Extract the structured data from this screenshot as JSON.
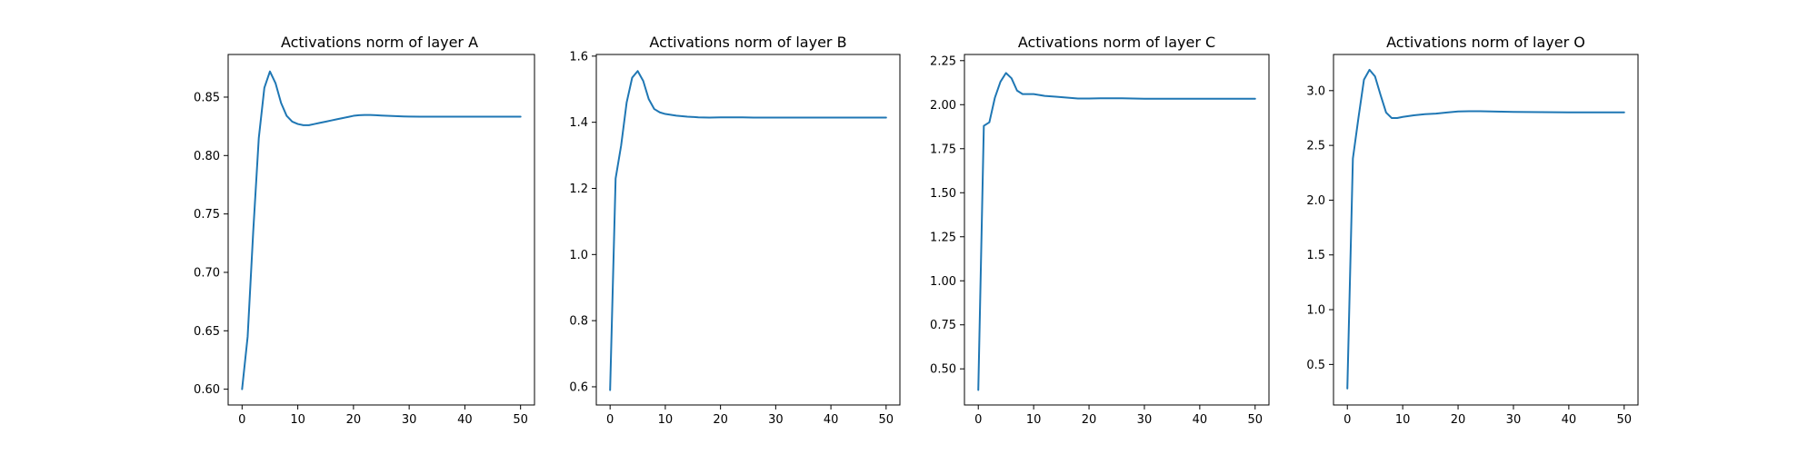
{
  "series_color": "#1f77b4",
  "chart_data": [
    {
      "type": "line",
      "title": "Activations norm of layer A",
      "xlabel": "",
      "ylabel": "",
      "xlim": [
        -2.5,
        52.5
      ],
      "ylim": [
        0.5865,
        0.8865
      ],
      "xticks": [
        0,
        10,
        20,
        30,
        40,
        50
      ],
      "yticks": [
        0.6,
        0.65,
        0.7,
        0.75,
        0.8,
        0.85
      ],
      "ytick_labels": [
        "0.60",
        "0.65",
        "0.70",
        "0.75",
        "0.80",
        "0.85"
      ],
      "grid": false,
      "series": [
        {
          "x": [
            0,
            1,
            2,
            3,
            4,
            5,
            6,
            7,
            8,
            9,
            10,
            11,
            12,
            13,
            14,
            15,
            16,
            17,
            18,
            19,
            20,
            21,
            22,
            23,
            24,
            25,
            26,
            27,
            28,
            29,
            30,
            32,
            34,
            36,
            38,
            40,
            42,
            44,
            46,
            48,
            50
          ],
          "y": [
            0.6,
            0.645,
            0.735,
            0.815,
            0.858,
            0.872,
            0.862,
            0.845,
            0.834,
            0.829,
            0.827,
            0.826,
            0.826,
            0.827,
            0.828,
            0.829,
            0.83,
            0.831,
            0.832,
            0.833,
            0.834,
            0.8345,
            0.8347,
            0.8347,
            0.8345,
            0.8342,
            0.834,
            0.8338,
            0.8336,
            0.8335,
            0.8334,
            0.8333,
            0.8333,
            0.8333,
            0.8333,
            0.8333,
            0.8333,
            0.8333,
            0.8333,
            0.8333,
            0.8333
          ]
        }
      ]
    },
    {
      "type": "line",
      "title": "Activations norm of layer B",
      "xlabel": "",
      "ylabel": "",
      "xlim": [
        -2.5,
        52.5
      ],
      "ylim": [
        0.545,
        1.605
      ],
      "xticks": [
        0,
        10,
        20,
        30,
        40,
        50
      ],
      "yticks": [
        0.6,
        0.8,
        1.0,
        1.2,
        1.4,
        1.6
      ],
      "ytick_labels": [
        "0.6",
        "0.8",
        "1.0",
        "1.2",
        "1.4",
        "1.6"
      ],
      "grid": false,
      "series": [
        {
          "x": [
            0,
            1,
            2,
            3,
            4,
            5,
            6,
            7,
            8,
            9,
            10,
            12,
            14,
            16,
            18,
            20,
            22,
            24,
            26,
            28,
            30,
            35,
            40,
            45,
            50
          ],
          "y": [
            0.59,
            1.23,
            1.33,
            1.46,
            1.535,
            1.555,
            1.525,
            1.47,
            1.44,
            1.43,
            1.425,
            1.42,
            1.417,
            1.415,
            1.414,
            1.415,
            1.415,
            1.415,
            1.414,
            1.414,
            1.414,
            1.414,
            1.414,
            1.414,
            1.414
          ]
        }
      ]
    },
    {
      "type": "line",
      "title": "Activations norm of layer C",
      "xlabel": "",
      "ylabel": "",
      "xlim": [
        -2.5,
        52.5
      ],
      "ylim": [
        0.295,
        2.285
      ],
      "xticks": [
        0,
        10,
        20,
        30,
        40,
        50
      ],
      "yticks": [
        0.5,
        0.75,
        1.0,
        1.25,
        1.5,
        1.75,
        2.0,
        2.25
      ],
      "ytick_labels": [
        "0.50",
        "0.75",
        "1.00",
        "1.25",
        "1.50",
        "1.75",
        "2.00",
        "2.25"
      ],
      "grid": false,
      "series": [
        {
          "x": [
            0,
            1,
            2,
            3,
            4,
            5,
            6,
            7,
            8,
            9,
            10,
            12,
            14,
            16,
            18,
            20,
            22,
            24,
            26,
            28,
            30,
            35,
            40,
            45,
            50
          ],
          "y": [
            0.38,
            1.88,
            1.9,
            2.04,
            2.13,
            2.18,
            2.15,
            2.08,
            2.06,
            2.06,
            2.06,
            2.05,
            2.045,
            2.04,
            2.035,
            2.035,
            2.036,
            2.036,
            2.036,
            2.035,
            2.034,
            2.034,
            2.034,
            2.034,
            2.034
          ]
        }
      ]
    },
    {
      "type": "line",
      "title": "Activations norm of layer O",
      "xlabel": "",
      "ylabel": "",
      "xlim": [
        -2.5,
        52.5
      ],
      "ylim": [
        0.13,
        3.33
      ],
      "xticks": [
        0,
        10,
        20,
        30,
        40,
        50
      ],
      "yticks": [
        0.5,
        1.0,
        1.5,
        2.0,
        2.5,
        3.0
      ],
      "ytick_labels": [
        "0.5",
        "1.0",
        "1.5",
        "2.0",
        "2.5",
        "3.0"
      ],
      "grid": false,
      "series": [
        {
          "x": [
            0,
            1,
            2,
            3,
            4,
            5,
            6,
            7,
            8,
            9,
            10,
            12,
            14,
            16,
            18,
            20,
            22,
            24,
            26,
            28,
            30,
            35,
            40,
            45,
            50
          ],
          "y": [
            0.28,
            2.38,
            2.75,
            3.1,
            3.19,
            3.13,
            2.96,
            2.8,
            2.75,
            2.75,
            2.76,
            2.775,
            2.785,
            2.79,
            2.8,
            2.81,
            2.812,
            2.812,
            2.81,
            2.808,
            2.806,
            2.804,
            2.802,
            2.802,
            2.802
          ]
        }
      ]
    }
  ]
}
